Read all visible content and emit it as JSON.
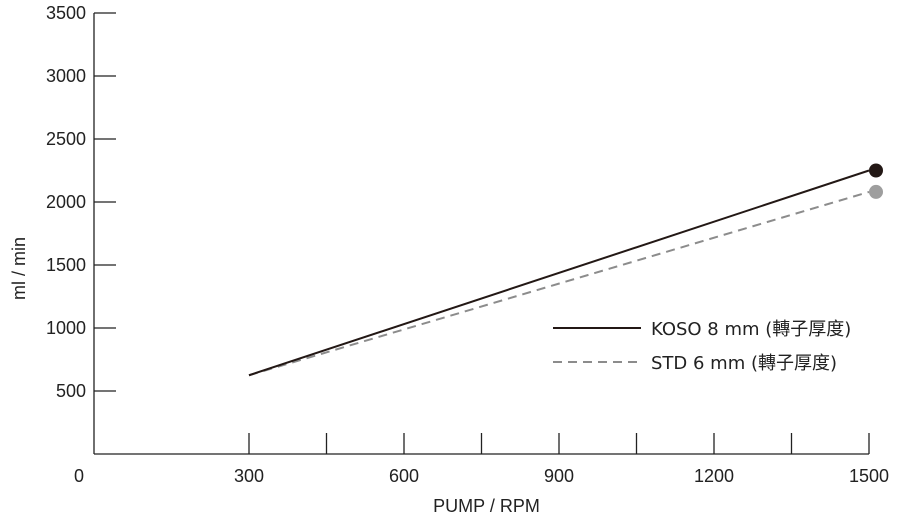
{
  "chart_data": {
    "type": "line",
    "title": "",
    "xlabel": "PUMP / RPM",
    "ylabel": "ml / min",
    "xlim": [
      0,
      1500
    ],
    "ylim": [
      0,
      3500
    ],
    "x_ticks": [
      300,
      600,
      900,
      1200,
      1500
    ],
    "x_minor_ticks": [
      300,
      450,
      600,
      750,
      900,
      1050,
      1200,
      1350,
      1500
    ],
    "x_origin_label": "0",
    "y_ticks": [
      500,
      1000,
      1500,
      2000,
      2500,
      3000,
      3500
    ],
    "grid": false,
    "legend_position": "right",
    "series": [
      {
        "name": "KOSO 8 mm (轉子厚度)",
        "style": "solid",
        "color": "#231815",
        "marker_color": "#231815",
        "x": [
          300,
          1500
        ],
        "y": [
          625,
          2250
        ]
      },
      {
        "name": "STD 6 mm (轉子厚度)",
        "style": "dashed",
        "color": "#8c8c8c",
        "marker_color": "#9e9e9e",
        "x": [
          300,
          1500
        ],
        "y": [
          625,
          2080
        ]
      }
    ]
  }
}
